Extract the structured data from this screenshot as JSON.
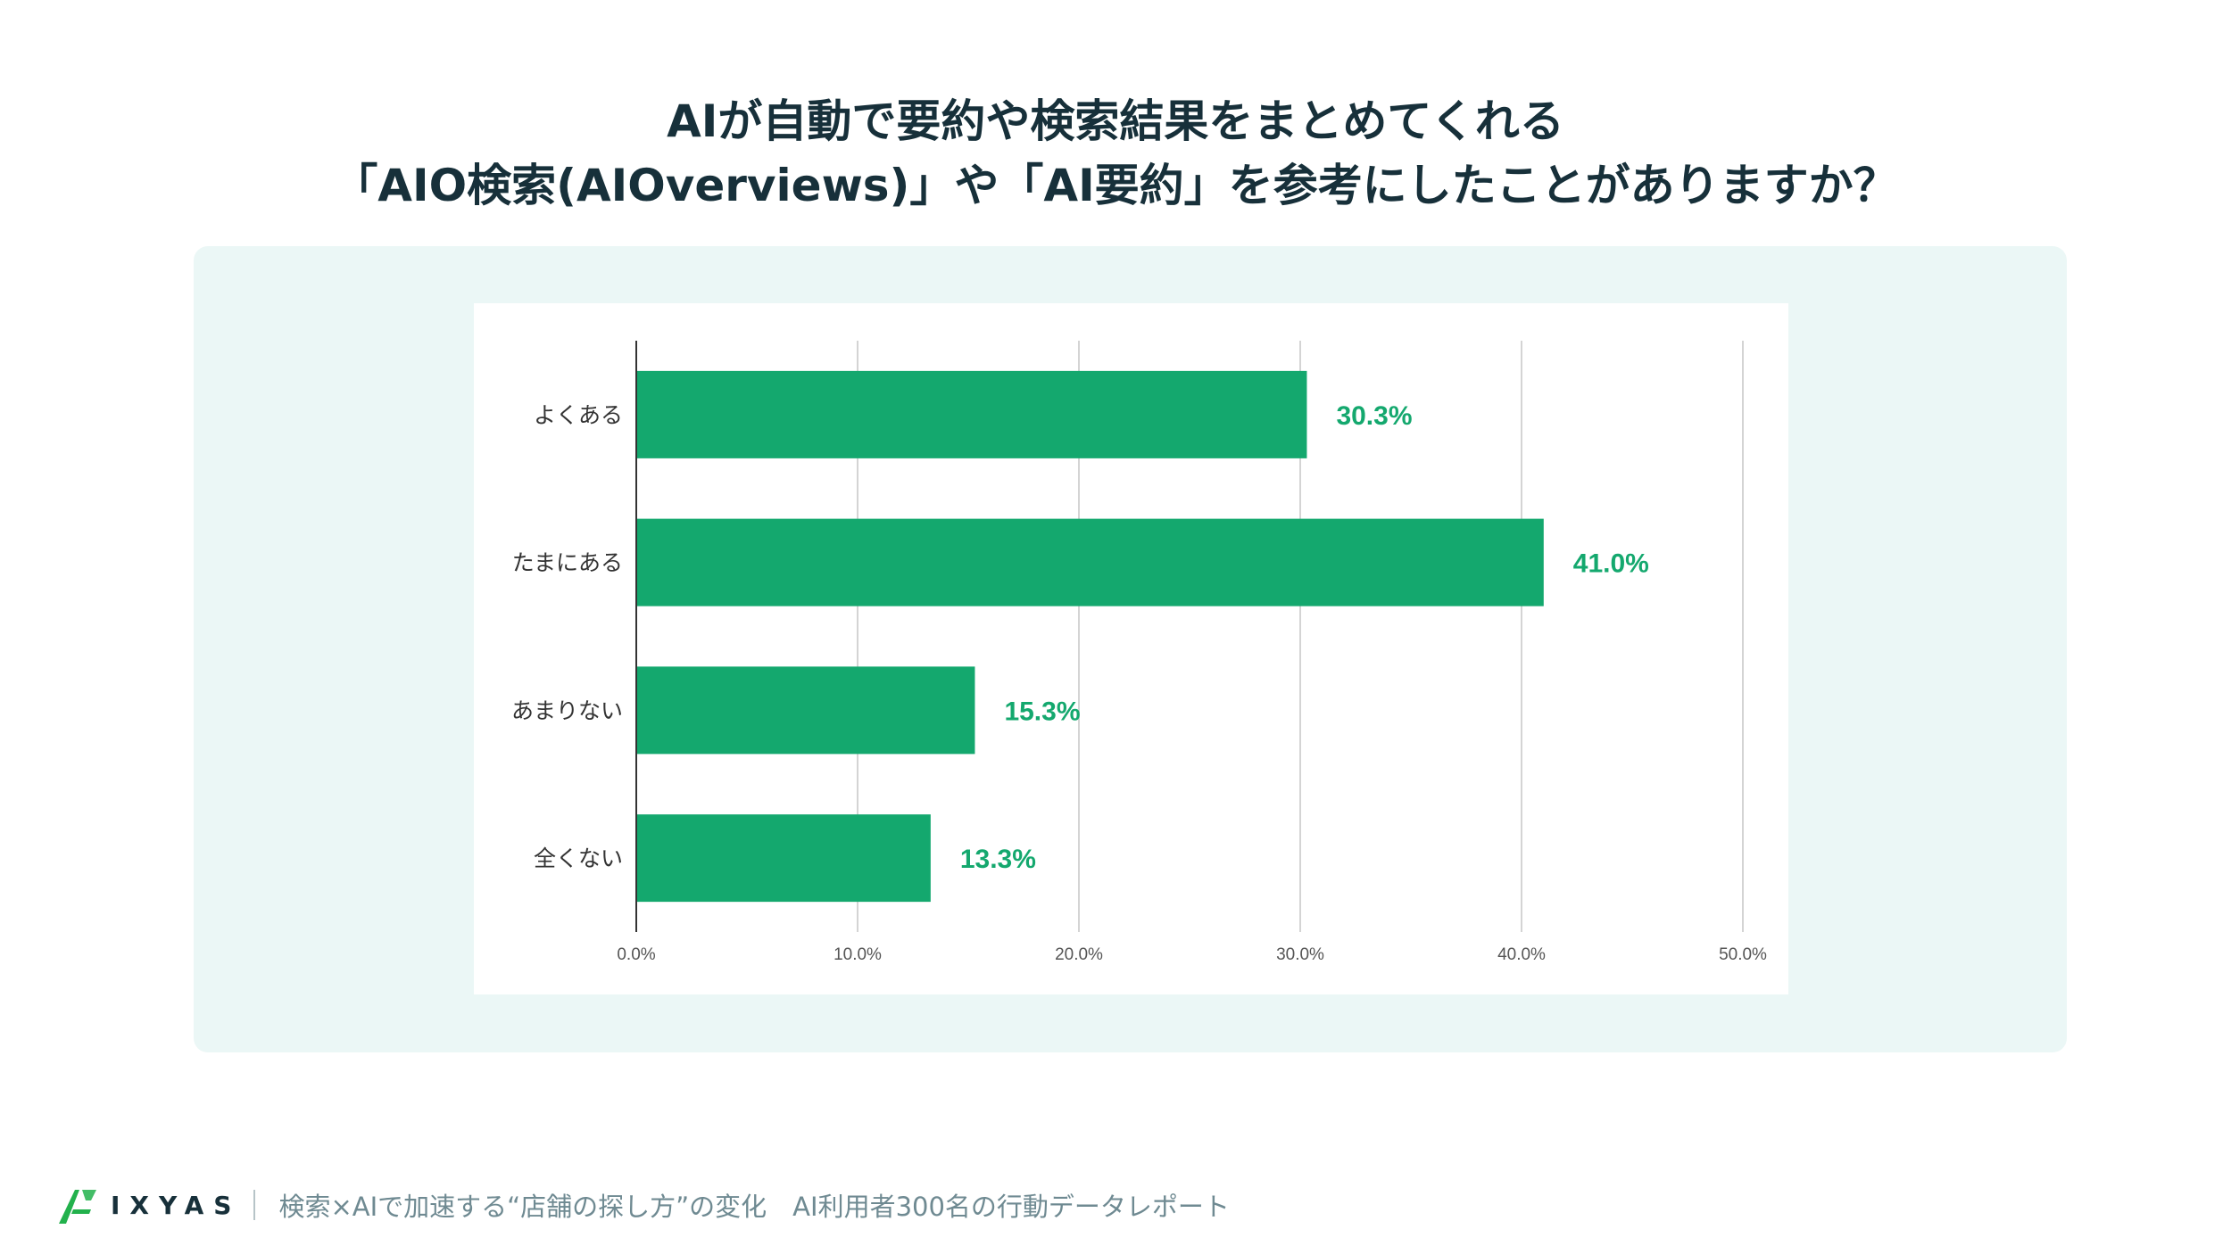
{
  "title": {
    "line1": "AIが自動で要約や検索結果をまとめてくれる",
    "line2": "「AIO検索(AIOverviews)」や「AI要約」を参考にしたことがありますか？"
  },
  "chart_data": {
    "type": "bar",
    "orientation": "horizontal",
    "categories": [
      "よくある",
      "たまにある",
      "あまりない",
      "全くない"
    ],
    "values": [
      30.3,
      41.0,
      15.3,
      13.3
    ],
    "data_labels": [
      "30.3%",
      "41.0%",
      "15.3%",
      "13.3%"
    ],
    "xlim": [
      0,
      50
    ],
    "x_ticks": [
      "0.0%",
      "10.0%",
      "20.0%",
      "30.0%",
      "40.0%",
      "50.0%"
    ],
    "grid": true,
    "bar_color": "#14a86e",
    "label_color": "#14a86e"
  },
  "footer": {
    "logo_text": "IXYAS",
    "logo_icon": "ixyas-logo-icon",
    "report_title": "検索×AIで加速する“店舗の探し方”の変化　AI利用者300名の行動データレポート"
  },
  "colors": {
    "title": "#17303a",
    "panel_bg": "#ebf7f6",
    "logo_green": "#22b14c"
  }
}
